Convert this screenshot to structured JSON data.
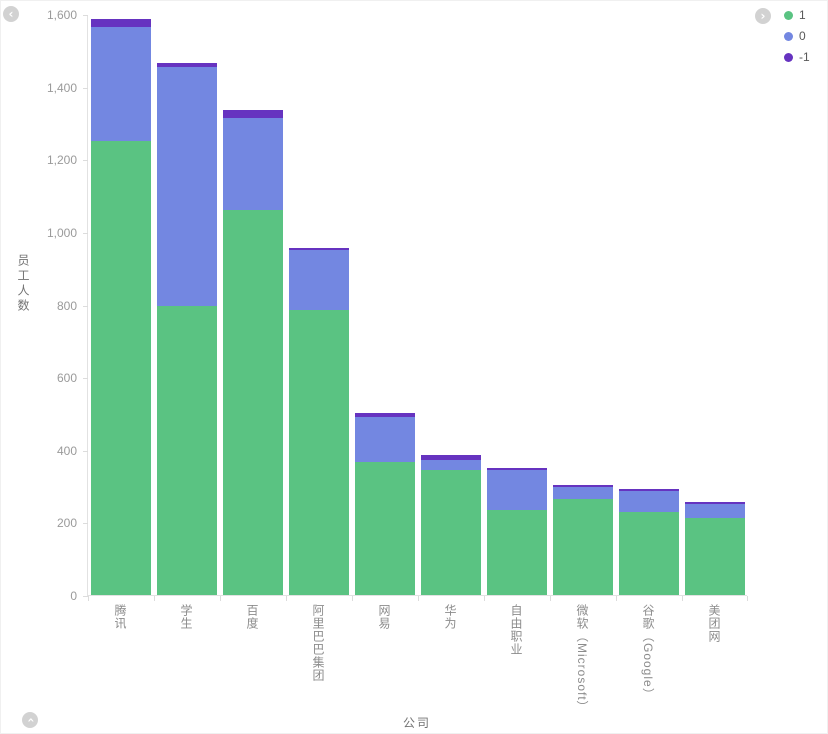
{
  "chart_data": {
    "type": "bar",
    "stacked": true,
    "xlabel": "公司",
    "ylabel": "员工人数",
    "ylim": [
      0,
      1600
    ],
    "grid": false,
    "legend_position": "top-right",
    "y_ticks": [
      "0",
      "200",
      "400",
      "600",
      "800",
      "1,000",
      "1,200",
      "1,400",
      "1,600"
    ],
    "categories": [
      "腾讯",
      "学生",
      "百度",
      "阿里巴巴集团",
      "网易",
      "华为",
      "自由职业",
      "微软（Microsoft）",
      "谷歌（Google）",
      "美团网"
    ],
    "series": [
      {
        "name": "1",
        "color": "#5ac382",
        "values": [
          1250,
          795,
          1060,
          785,
          366,
          345,
          234,
          264,
          229,
          212
        ]
      },
      {
        "name": "0",
        "color": "#7387e1",
        "values": [
          315,
          660,
          255,
          165,
          125,
          28,
          111,
          34,
          58,
          40
        ]
      },
      {
        "name": "-1",
        "color": "#6633c0",
        "values": [
          20,
          10,
          20,
          5,
          9,
          12,
          5,
          5,
          5,
          4
        ]
      }
    ],
    "legend": [
      {
        "label": "1",
        "color": "#5ac382"
      },
      {
        "label": "0",
        "color": "#7387e1"
      },
      {
        "label": "-1",
        "color": "#6633c0"
      }
    ]
  },
  "controls": {
    "prev_icon": "‹",
    "next_icon": "›",
    "up_icon": "›"
  },
  "colors": {
    "axis_line": "#e2e2e2",
    "tick_text": "#9a9a9a",
    "axis_title_text": "#737373",
    "nav_button_bg": "#d2d2d2"
  }
}
